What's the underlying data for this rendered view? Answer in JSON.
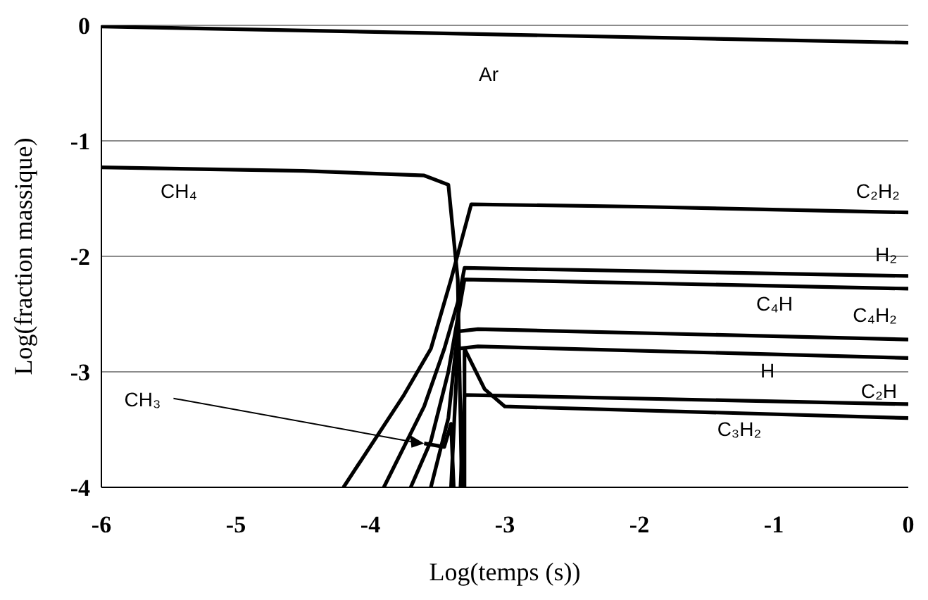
{
  "chart_data": {
    "type": "line",
    "xlabel": "Log(temps (s))",
    "ylabel": "Log(fraction massique)",
    "xlim": [
      -6,
      0
    ],
    "xticks": [
      -6,
      -5,
      -4,
      -3,
      -2,
      -1,
      0
    ],
    "ylim": [
      -4,
      0
    ],
    "yticks": [
      -4,
      -3,
      -2,
      -1,
      0
    ],
    "grid": "y",
    "marker": "none",
    "line_style": "solid",
    "series": [
      {
        "name": "Ar",
        "color": "#000000",
        "x": [
          -6,
          0
        ],
        "values": [
          -0.01,
          -0.15
        ]
      },
      {
        "name": "CH₄",
        "color": "#000000",
        "x": [
          -6,
          -4.5,
          -3.6,
          -3.42,
          -3.35,
          -3.32
        ],
        "values": [
          -1.23,
          -1.26,
          -1.3,
          -1.38,
          -2.2,
          -4
        ]
      },
      {
        "name": "C₂H₂",
        "color": "#000000",
        "x": [
          -4.2,
          -3.75,
          -3.55,
          -3.4,
          -3.25,
          -2,
          0
        ],
        "values": [
          -4,
          -3.2,
          -2.8,
          -2.2,
          -1.55,
          -1.57,
          -1.62
        ]
      },
      {
        "name": "H₂",
        "color": "#000000",
        "x": [
          -3.9,
          -3.6,
          -3.45,
          -3.35,
          -3.3,
          0
        ],
        "values": [
          -4,
          -3.3,
          -2.8,
          -2.4,
          -2.1,
          -2.17
        ]
      },
      {
        "name": "C₄H",
        "color": "#000000",
        "x": [
          -3.7,
          -3.55,
          -3.42,
          -3.3,
          0
        ],
        "values": [
          -4,
          -3.6,
          -3,
          -2.2,
          -2.28
        ]
      },
      {
        "name": "C₄H₂",
        "color": "#000000",
        "x": [
          -3.55,
          -3.42,
          -3.35,
          -3.2,
          0
        ],
        "values": [
          -4,
          -3.4,
          -2.65,
          -2.63,
          -2.72
        ]
      },
      {
        "name": "H",
        "color": "#000000",
        "x": [
          -3.4,
          -3.35,
          -3.2,
          0
        ],
        "values": [
          -4,
          -2.8,
          -2.78,
          -2.88
        ]
      },
      {
        "name": "C₂H",
        "color": "#000000",
        "x": [
          -3.33,
          -3.3,
          0
        ],
        "values": [
          -4,
          -3.2,
          -3.28
        ]
      },
      {
        "name": "C₃H₂",
        "color": "#000000",
        "x": [
          -3.3,
          -3.3,
          -3.15,
          -3,
          0
        ],
        "values": [
          -4,
          -2.8,
          -3.15,
          -3.3,
          -3.4
        ]
      },
      {
        "name": "CH₃",
        "color": "#000000",
        "x": [
          -3.6,
          -3.45,
          -3.4,
          -3.38
        ],
        "values": [
          -3.62,
          -3.65,
          -3.45,
          -4
        ]
      }
    ]
  }
}
